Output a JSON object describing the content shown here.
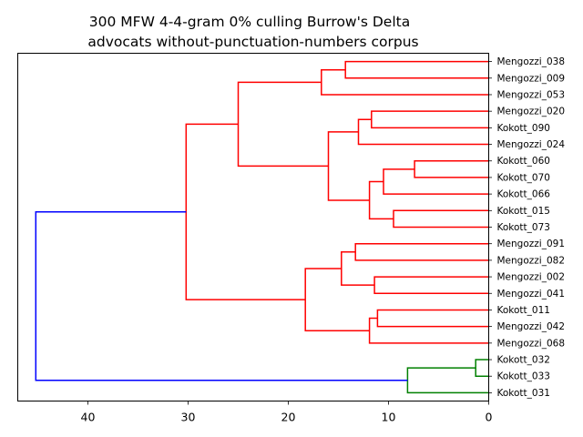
{
  "chart_data": {
    "type": "dendrogram",
    "title_line1": "300 MFW 4-4-gram 0% culling Burrow's Delta",
    "title_line2": "advocats without-punctuation-numbers corpus",
    "orientation": "left",
    "xlim": [
      47,
      0
    ],
    "xticks": [
      40,
      30,
      20,
      10,
      0
    ],
    "leaves": [
      "Mengozzi_038",
      "Mengozzi_009",
      "Mengozzi_053",
      "Mengozzi_020",
      "Kokott_090",
      "Mengozzi_024",
      "Kokott_060",
      "Kokott_070",
      "Kokott_066",
      "Kokott_015",
      "Kokott_073",
      "Mengozzi_091",
      "Mengozzi_082",
      "Mengozzi_002",
      "Mengozzi_041",
      "Kokott_011",
      "Mengozzi_042",
      "Mengozzi_068",
      "Kokott_032",
      "Kokott_033",
      "Kokott_031"
    ],
    "merges": [
      {
        "id": "n1",
        "left": "Mengozzi_038",
        "right": "Mengozzi_009",
        "height": 14.3,
        "color": "#ff0000"
      },
      {
        "id": "n2",
        "left": "n1",
        "right": "Mengozzi_053",
        "height": 16.7,
        "color": "#ff0000"
      },
      {
        "id": "n3",
        "left": "Mengozzi_020",
        "right": "Kokott_090",
        "height": 11.7,
        "color": "#ff0000"
      },
      {
        "id": "n4",
        "left": "n3",
        "right": "Mengozzi_024",
        "height": 13.0,
        "color": "#ff0000"
      },
      {
        "id": "n5",
        "left": "Kokott_060",
        "right": "Kokott_070",
        "height": 7.4,
        "color": "#ff0000"
      },
      {
        "id": "n6",
        "left": "n5",
        "right": "Kokott_066",
        "height": 10.5,
        "color": "#ff0000"
      },
      {
        "id": "n7",
        "left": "Kokott_015",
        "right": "Kokott_073",
        "height": 9.5,
        "color": "#ff0000"
      },
      {
        "id": "n8",
        "left": "n6",
        "right": "n7",
        "height": 11.9,
        "color": "#ff0000"
      },
      {
        "id": "n9",
        "left": "n4",
        "right": "n8",
        "height": 16.0,
        "color": "#ff0000"
      },
      {
        "id": "n10",
        "left": "n2",
        "right": "n9",
        "height": 25.0,
        "color": "#ff0000"
      },
      {
        "id": "n11",
        "left": "Mengozzi_091",
        "right": "Mengozzi_082",
        "height": 13.3,
        "color": "#ff0000"
      },
      {
        "id": "n12",
        "left": "Mengozzi_002",
        "right": "Mengozzi_041",
        "height": 11.4,
        "color": "#ff0000"
      },
      {
        "id": "n13",
        "left": "n11",
        "right": "n12",
        "height": 14.7,
        "color": "#ff0000"
      },
      {
        "id": "n14",
        "left": "Kokott_011",
        "right": "Mengozzi_042",
        "height": 11.1,
        "color": "#ff0000"
      },
      {
        "id": "n15",
        "left": "n14",
        "right": "Mengozzi_068",
        "height": 11.9,
        "color": "#ff0000"
      },
      {
        "id": "n16",
        "left": "n13",
        "right": "n15",
        "height": 18.3,
        "color": "#ff0000"
      },
      {
        "id": "n17",
        "left": "n10",
        "right": "n16",
        "height": 30.2,
        "color": "#ff0000"
      },
      {
        "id": "n18",
        "left": "Kokott_032",
        "right": "Kokott_033",
        "height": 1.3,
        "color": "#008000"
      },
      {
        "id": "n19",
        "left": "n18",
        "right": "Kokott_031",
        "height": 8.1,
        "color": "#008000"
      },
      {
        "id": "n20",
        "left": "n17",
        "right": "n19",
        "height": 45.2,
        "color": "#0000ff"
      }
    ]
  }
}
